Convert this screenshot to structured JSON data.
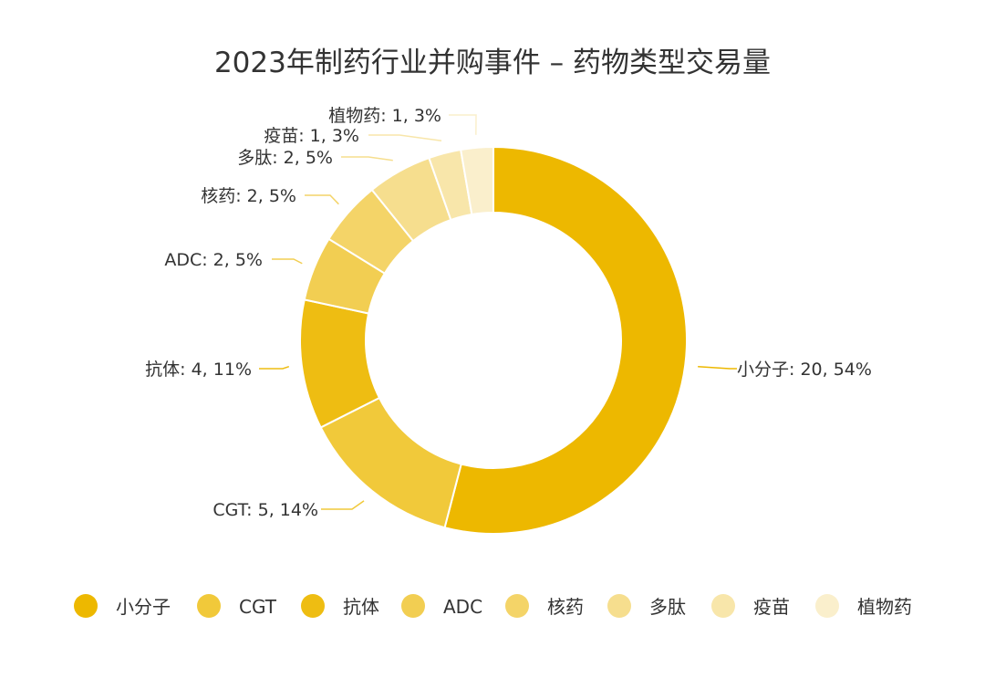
{
  "chart_data": {
    "type": "pie",
    "variant": "donut",
    "title": "2023年制药行业并购事件 – 药物类型交易量",
    "slices": [
      {
        "name": "小分子",
        "value": 20,
        "percent": "54%",
        "color": "#EDB800",
        "label": "小分子: 20, 54%"
      },
      {
        "name": "CGT",
        "value": 5,
        "percent": "14%",
        "color": "#F1C93A",
        "label": "CGT: 5, 14%"
      },
      {
        "name": "抗体",
        "value": 4,
        "percent": "11%",
        "color": "#EEBD12",
        "label": "抗体: 4, 11%"
      },
      {
        "name": "ADC",
        "value": 2,
        "percent": "5%",
        "color": "#F2CE52",
        "label": "ADC: 2, 5%"
      },
      {
        "name": "核药",
        "value": 2,
        "percent": "5%",
        "color": "#F4D468",
        "label": "核药: 2, 5%"
      },
      {
        "name": "多肽",
        "value": 2,
        "percent": "5%",
        "color": "#F6DE8E",
        "label": "多肽: 2, 5%"
      },
      {
        "name": "疫苗",
        "value": 1,
        "percent": "3%",
        "color": "#F8E6AA",
        "label": "疫苗: 1, 3%"
      },
      {
        "name": "植物药",
        "value": 1,
        "percent": "3%",
        "color": "#FAEFCC",
        "label": "植物药: 1, 3%"
      }
    ],
    "legend_position": "bottom"
  }
}
